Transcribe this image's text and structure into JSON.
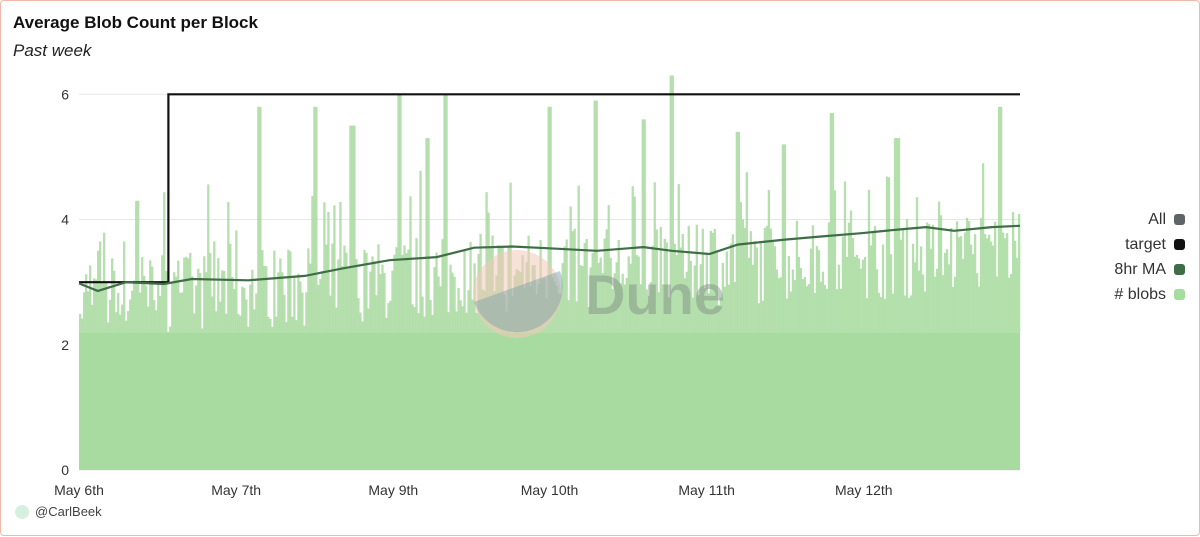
{
  "header": {
    "title": "Average Blob Count per Block",
    "subtitle": "Past week"
  },
  "legend": {
    "items": [
      {
        "label": "All",
        "color": "#5f6468"
      },
      {
        "label": "target",
        "color": "#111111"
      },
      {
        "label": "8hr MA",
        "color": "#3f6d46"
      },
      {
        "label": "# blobs",
        "color": "#a8dba0"
      }
    ]
  },
  "watermark": {
    "text": "Dune"
  },
  "credit": {
    "text": "@CarlBeek"
  },
  "chart_data": {
    "type": "bar",
    "title": "Average Blob Count per Block",
    "subtitle": "Past week",
    "xlabel": "",
    "ylabel": "",
    "ylim": [
      0,
      6.5
    ],
    "yticks": [
      0,
      2,
      4,
      6
    ],
    "grid": true,
    "legend_position": "right",
    "x_range": [
      "2024-05-06T00:00",
      "2024-05-12T23:59"
    ],
    "xtick_labels": [
      "May 6th",
      "May 7th",
      "May 9th",
      "May 10th",
      "May 11th",
      "May 12th"
    ],
    "series": [
      {
        "name": "target",
        "type": "step-line",
        "color": "#111111",
        "points": [
          [
            0,
            3
          ],
          [
            0.095,
            3
          ],
          [
            0.095,
            6
          ],
          [
            1.0,
            6
          ]
        ]
      },
      {
        "name": "8hr MA",
        "type": "line",
        "color": "#3f6d46",
        "points": [
          [
            0.0,
            2.98
          ],
          [
            0.02,
            2.86
          ],
          [
            0.05,
            3.0
          ],
          [
            0.09,
            2.97
          ],
          [
            0.12,
            3.05
          ],
          [
            0.18,
            3.03
          ],
          [
            0.24,
            3.1
          ],
          [
            0.28,
            3.22
          ],
          [
            0.33,
            3.35
          ],
          [
            0.38,
            3.4
          ],
          [
            0.42,
            3.55
          ],
          [
            0.46,
            3.57
          ],
          [
            0.5,
            3.54
          ],
          [
            0.55,
            3.5
          ],
          [
            0.6,
            3.56
          ],
          [
            0.63,
            3.5
          ],
          [
            0.67,
            3.45
          ],
          [
            0.7,
            3.6
          ],
          [
            0.75,
            3.68
          ],
          [
            0.79,
            3.73
          ],
          [
            0.83,
            3.78
          ],
          [
            0.87,
            3.84
          ],
          [
            0.9,
            3.88
          ],
          [
            0.93,
            3.82
          ],
          [
            0.97,
            3.88
          ],
          [
            1.0,
            3.9
          ]
        ]
      },
      {
        "name": "# blobs",
        "type": "bar",
        "color": "#a8dba0",
        "baseline_trend": [
          [
            0.0,
            2.6
          ],
          [
            0.1,
            2.65
          ],
          [
            0.3,
            2.8
          ],
          [
            0.5,
            3.0
          ],
          [
            0.7,
            3.1
          ],
          [
            0.9,
            3.2
          ],
          [
            1.0,
            3.3
          ]
        ],
        "spikes": [
          [
            0.06,
            4.3
          ],
          [
            0.19,
            5.8
          ],
          [
            0.25,
            5.8
          ],
          [
            0.29,
            5.5
          ],
          [
            0.34,
            6.0
          ],
          [
            0.37,
            5.3
          ],
          [
            0.39,
            6.0
          ],
          [
            0.5,
            5.8
          ],
          [
            0.55,
            5.9
          ],
          [
            0.6,
            5.6
          ],
          [
            0.63,
            6.3
          ],
          [
            0.7,
            5.4
          ],
          [
            0.75,
            5.2
          ],
          [
            0.8,
            5.7
          ],
          [
            0.87,
            5.3
          ],
          [
            0.98,
            5.8
          ]
        ]
      }
    ]
  }
}
